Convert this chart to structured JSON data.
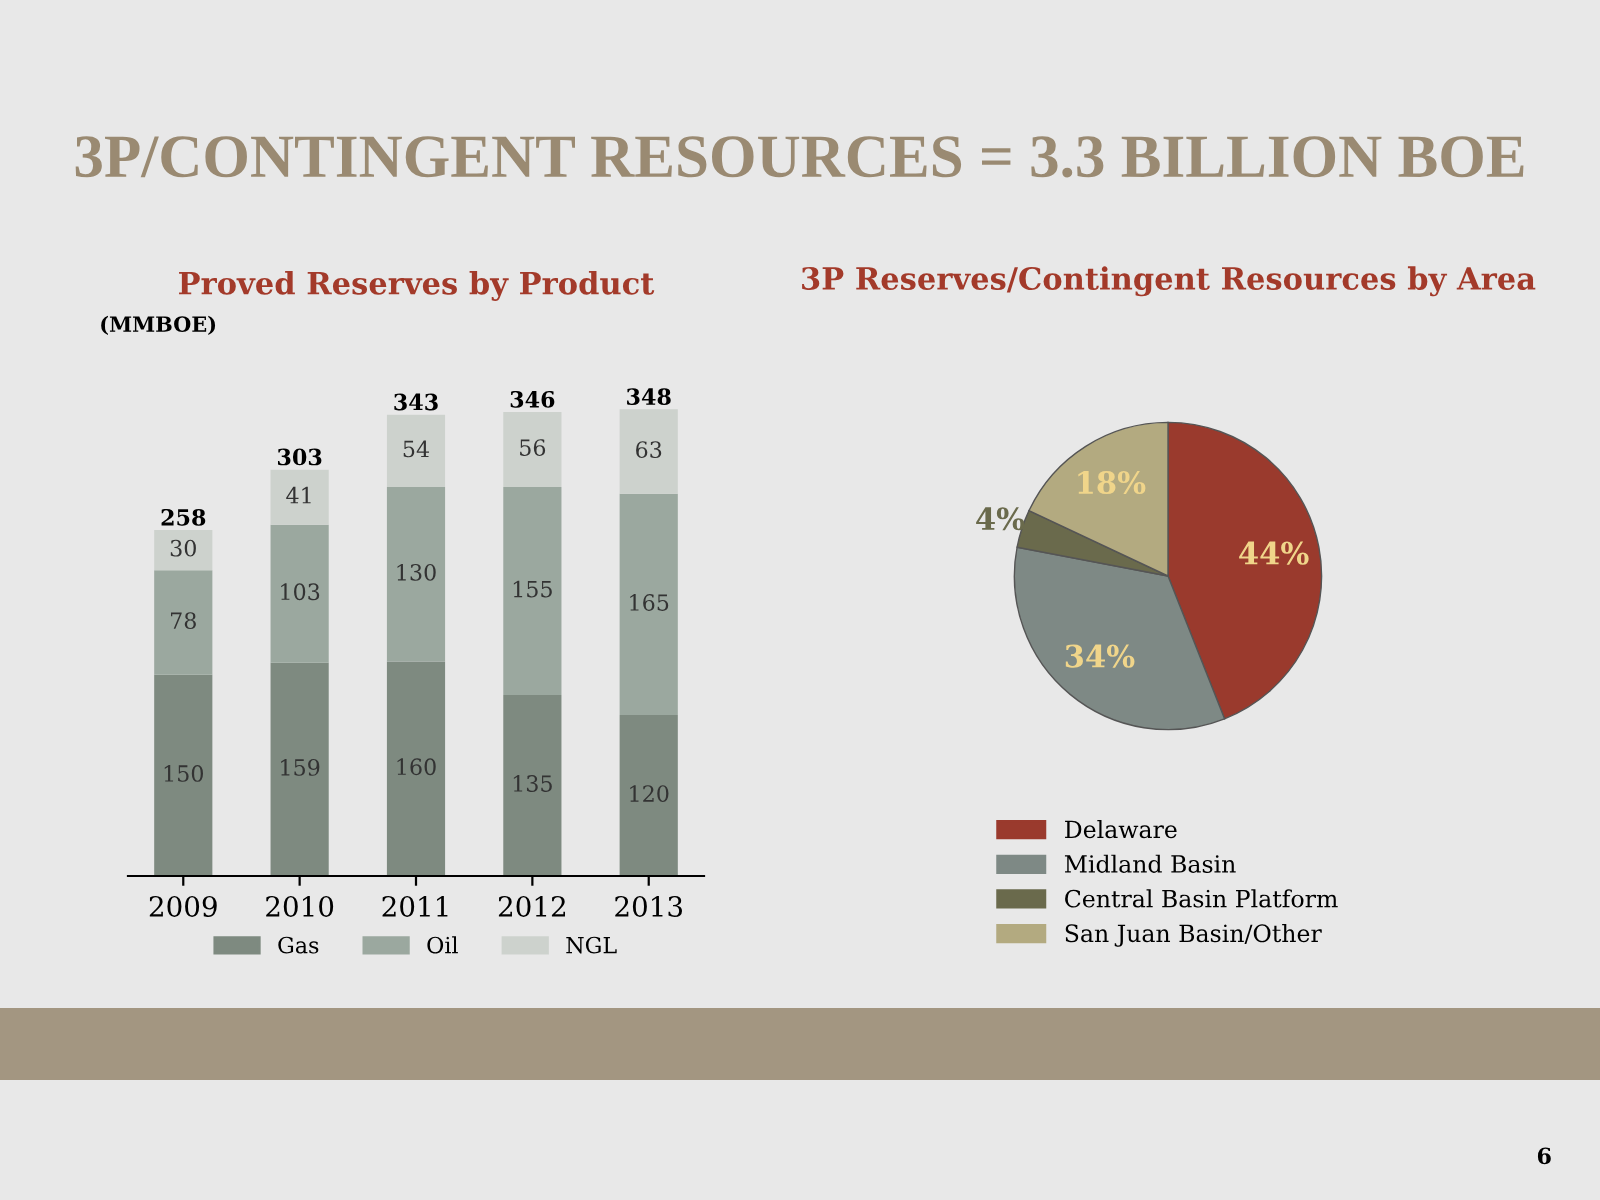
{
  "chart_data": [
    {
      "type": "bar",
      "title": "Proved Reserves by Product",
      "subtitle": "(MMBOE)",
      "stacked": true,
      "data_labels": true,
      "legend": "bottom",
      "grid": false,
      "categories": [
        "2009",
        "2010",
        "2011",
        "2012",
        "2013"
      ],
      "series": [
        {
          "name": "Gas",
          "color": "#7e8a80",
          "values": [
            150,
            159,
            160,
            135,
            120
          ]
        },
        {
          "name": "Oil",
          "color": "#9ba89f",
          "values": [
            78,
            103,
            130,
            155,
            165
          ]
        },
        {
          "name": "NGL",
          "color": "#cdd2cd",
          "values": [
            30,
            41,
            54,
            56,
            63
          ]
        }
      ],
      "totals": [
        "258",
        "303",
        "343",
        "346",
        "348"
      ],
      "annotations": [
        "3P/CONTINGENT RESOURCES = 3.3 BILLION BOE",
        "6"
      ]
    },
    {
      "type": "pie",
      "title": "3P Reserves/Contingent Resources by Area",
      "legend": "bottom",
      "categories": [
        "Delaware",
        "Midland Basin",
        "Central Basin Platform",
        "San Juan Basin/Other"
      ],
      "values": [
        44,
        34,
        4,
        18
      ],
      "colors": [
        "#9a3a2d",
        "#7e8985",
        "#6a6a4c",
        "#b3aa80"
      ],
      "value_labels": [
        "44%",
        "34%",
        "4%",
        "18%"
      ]
    }
  ]
}
